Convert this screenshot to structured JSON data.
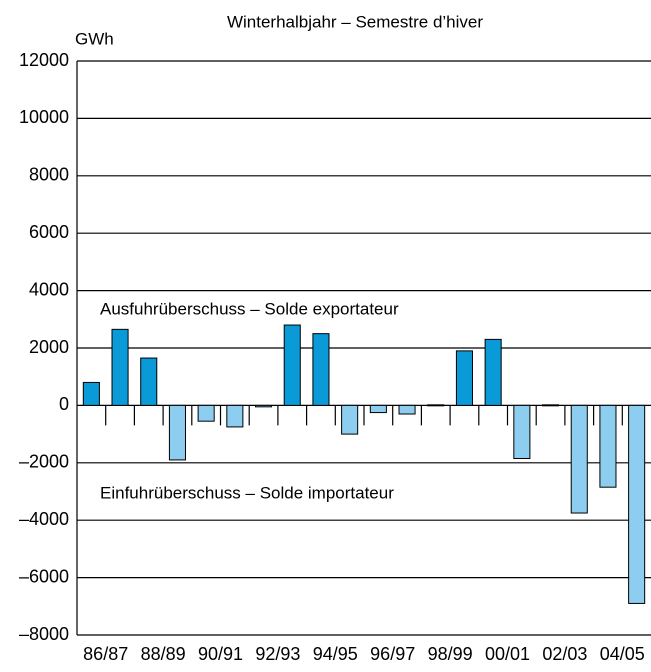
{
  "chart_data": {
    "type": "bar",
    "title": "Winterhalbjahr – Semestre d’hiver",
    "y_label": "GWh",
    "annotations": [
      "Ausfuhrüberschuss – Solde exportateur",
      "Einfuhrüberschuss – Solde importateur"
    ],
    "categories": [
      "86/87",
      null,
      "88/89",
      null,
      "90/91",
      null,
      "92/93",
      null,
      "94/95",
      null,
      "96/97",
      null,
      "98/99",
      null,
      "00/01",
      null,
      "02/03",
      null,
      "04/05",
      null
    ],
    "values": [
      800,
      2650,
      1650,
      -1900,
      -550,
      -750,
      -50,
      2800,
      2500,
      -1000,
      -250,
      -300,
      20,
      1900,
      2300,
      -1850,
      20,
      -3750,
      -2850,
      -6900
    ],
    "color_positive": "#0a9ad8",
    "color_negative": "#8dcdf0",
    "ylim": [
      -8000,
      12000
    ],
    "yticks": [
      {
        "value": -8000,
        "label": "–8000"
      },
      {
        "value": -6000,
        "label": "–6000"
      },
      {
        "value": -4000,
        "label": "–4000"
      },
      {
        "value": -2000,
        "label": "–2000"
      },
      0,
      2000,
      4000,
      6000,
      8000,
      10000,
      12000
    ],
    "grid": true
  }
}
